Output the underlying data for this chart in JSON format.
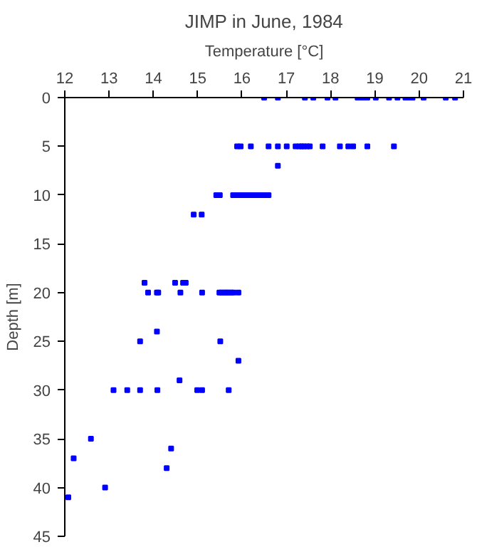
{
  "chart_data": {
    "type": "scatter",
    "title": "JIMP in June, 1984",
    "xlabel": "Temperature [°C]",
    "ylabel": "Depth [m]",
    "x": [
      16.5,
      16.81,
      17.42,
      17.61,
      17.93,
      18.11,
      18.61,
      18.69,
      18.77,
      18.83,
      19.02,
      19.32,
      19.51,
      19.69,
      19.78,
      19.85,
      20.1,
      20.6,
      20.81,
      15.89,
      15.97,
      16.2,
      16.6,
      16.81,
      17.01,
      17.21,
      17.29,
      17.35,
      17.4,
      17.47,
      17.53,
      17.82,
      18.21,
      18.4,
      18.51,
      18.83,
      19.43,
      16.81,
      15.42,
      15.5,
      15.8,
      15.9,
      16.0,
      16.1,
      16.2,
      16.3,
      16.4,
      16.5,
      16.6,
      14.91,
      15.09,
      13.8,
      14.49,
      14.67,
      14.73,
      13.88,
      14.08,
      14.11,
      14.61,
      15.1,
      15.49,
      15.54,
      15.6,
      15.65,
      15.7,
      15.76,
      15.81,
      15.92,
      14.08,
      13.7,
      15.51,
      15.92,
      14.59,
      13.1,
      13.41,
      13.7,
      14.09,
      14.99,
      15.1,
      15.7,
      12.59,
      14.4,
      12.2,
      14.3,
      12.91,
      12.08
    ],
    "series": [
      {
        "color": "#0000ff",
        "values": [
          0,
          0,
          0,
          0,
          0,
          0,
          0,
          0,
          0,
          0,
          0,
          0,
          0,
          0,
          0,
          0,
          0,
          0,
          0,
          5,
          5,
          5,
          5,
          5,
          5,
          5,
          5,
          5,
          5,
          5,
          5,
          5,
          5,
          5,
          5,
          5,
          5,
          7,
          10,
          10,
          10,
          10,
          10,
          10,
          10,
          10,
          10,
          10,
          10,
          12,
          12,
          19,
          19,
          19,
          19,
          20,
          20,
          20,
          20,
          20,
          20,
          20,
          20,
          20,
          20,
          20,
          20,
          20,
          24,
          25,
          25,
          27,
          29,
          30,
          30,
          30,
          30,
          30,
          30,
          30,
          35,
          36,
          37,
          38,
          40,
          41
        ]
      }
    ],
    "marker": "square",
    "xlim": [
      12,
      21
    ],
    "xticks": [
      12,
      13,
      14,
      15,
      16,
      17,
      18,
      19,
      20,
      21
    ],
    "ylim": [
      45,
      0
    ],
    "yticks": [
      0,
      5,
      10,
      15,
      20,
      25,
      30,
      35,
      40,
      45
    ]
  }
}
